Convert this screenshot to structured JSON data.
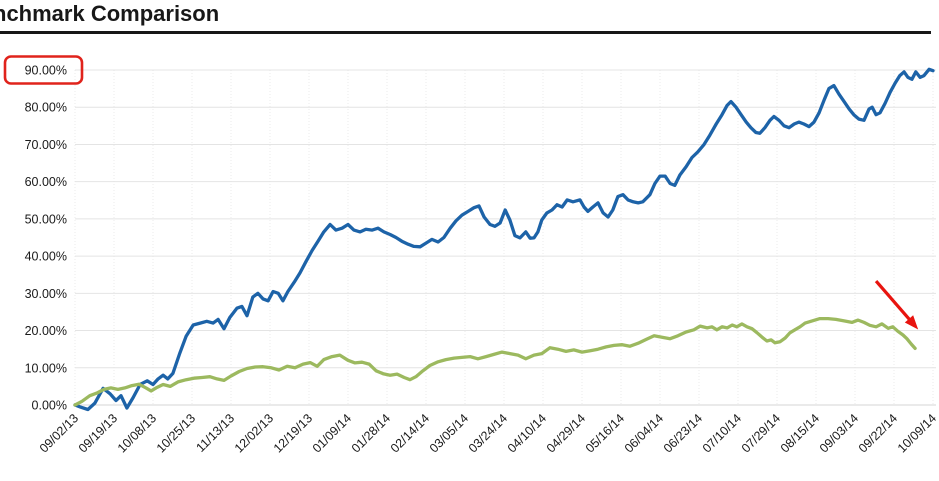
{
  "page": {
    "title": "nchmark Comparison"
  },
  "chart_data": {
    "type": "line",
    "title": "nchmark Comparison",
    "xlabel": "",
    "ylabel": "",
    "ylim": [
      0,
      90
    ],
    "y_tick_labels": [
      "90.00%",
      "80.00%",
      "70.00%",
      "60.00%",
      "50.00%",
      "40.00%",
      "30.00%",
      "20.00%",
      "10.00%",
      "0.00%"
    ],
    "x_tick_labels": [
      "09/02/13",
      "09/19/13",
      "10/08/13",
      "10/25/13",
      "11/13/13",
      "12/02/13",
      "12/19/13",
      "01/09/14",
      "01/28/14",
      "02/14/14",
      "03/05/14",
      "03/24/14",
      "04/10/14",
      "04/29/14",
      "05/16/14",
      "06/04/14",
      "06/23/14",
      "07/10/14",
      "07/29/14",
      "08/15/14",
      "09/03/14",
      "09/22/14",
      "10/09/14"
    ],
    "x_tick_rotation_deg": -45,
    "legend_position": "none",
    "grid": {
      "horizontal": true,
      "vertical_dotted": true,
      "color": "#e4e4e4"
    },
    "axis_label_color": "#1a1a1a",
    "series": [
      {
        "name": "blue-series",
        "color": "#1d63a8",
        "unit": "percent",
        "points": [
          [
            0,
            0
          ],
          [
            0.13,
            -0.5
          ],
          [
            0.33,
            -1.2
          ],
          [
            0.51,
            0.5
          ],
          [
            0.72,
            4.5
          ],
          [
            0.9,
            3
          ],
          [
            1.05,
            1.2
          ],
          [
            1.18,
            2.5
          ],
          [
            1.33,
            -0.8
          ],
          [
            1.49,
            2
          ],
          [
            1.67,
            5.5
          ],
          [
            1.85,
            6.5
          ],
          [
            2,
            5.5
          ],
          [
            2.13,
            7
          ],
          [
            2.26,
            8
          ],
          [
            2.38,
            7
          ],
          [
            2.51,
            8.5
          ],
          [
            2.69,
            14
          ],
          [
            2.85,
            18.5
          ],
          [
            3.03,
            21.5
          ],
          [
            3.21,
            22
          ],
          [
            3.38,
            22.5
          ],
          [
            3.54,
            22
          ],
          [
            3.67,
            23
          ],
          [
            3.82,
            20.5
          ],
          [
            3.97,
            23.5
          ],
          [
            4.15,
            26
          ],
          [
            4.28,
            26.5
          ],
          [
            4.41,
            24
          ],
          [
            4.56,
            29
          ],
          [
            4.69,
            30
          ],
          [
            4.82,
            28.5
          ],
          [
            4.95,
            28
          ],
          [
            5.08,
            30.5
          ],
          [
            5.21,
            30
          ],
          [
            5.33,
            28
          ],
          [
            5.46,
            30.5
          ],
          [
            5.62,
            33
          ],
          [
            5.77,
            35.5
          ],
          [
            5.92,
            38.5
          ],
          [
            6.08,
            41.5
          ],
          [
            6.23,
            44
          ],
          [
            6.38,
            46.5
          ],
          [
            6.54,
            48.5
          ],
          [
            6.69,
            47
          ],
          [
            6.85,
            47.5
          ],
          [
            7,
            48.5
          ],
          [
            7.15,
            47
          ],
          [
            7.31,
            46.5
          ],
          [
            7.46,
            47.2
          ],
          [
            7.62,
            47
          ],
          [
            7.77,
            47.5
          ],
          [
            7.92,
            46.5
          ],
          [
            8.08,
            45.8
          ],
          [
            8.23,
            45
          ],
          [
            8.38,
            44
          ],
          [
            8.54,
            43.2
          ],
          [
            8.69,
            42.6
          ],
          [
            8.85,
            42.5
          ],
          [
            9,
            43.5
          ],
          [
            9.15,
            44.5
          ],
          [
            9.31,
            43.8
          ],
          [
            9.46,
            45
          ],
          [
            9.62,
            47.5
          ],
          [
            9.77,
            49.5
          ],
          [
            9.92,
            51
          ],
          [
            10.08,
            52
          ],
          [
            10.23,
            53
          ],
          [
            10.36,
            53.5
          ],
          [
            10.49,
            50.5
          ],
          [
            10.64,
            48.5
          ],
          [
            10.77,
            48
          ],
          [
            10.9,
            48.9
          ],
          [
            11.03,
            52.4
          ],
          [
            11.15,
            49.7
          ],
          [
            11.28,
            45.5
          ],
          [
            11.41,
            44.9
          ],
          [
            11.56,
            46.5
          ],
          [
            11.67,
            44.8
          ],
          [
            11.77,
            44.9
          ],
          [
            11.87,
            46.5
          ],
          [
            11.97,
            49.7
          ],
          [
            12.1,
            51.6
          ],
          [
            12.23,
            52.4
          ],
          [
            12.36,
            53.8
          ],
          [
            12.49,
            53.2
          ],
          [
            12.62,
            55.1
          ],
          [
            12.77,
            54.6
          ],
          [
            12.95,
            55.1
          ],
          [
            13.05,
            53.2
          ],
          [
            13.15,
            52
          ],
          [
            13.28,
            53.2
          ],
          [
            13.41,
            54.3
          ],
          [
            13.54,
            51.6
          ],
          [
            13.67,
            50.5
          ],
          [
            13.79,
            52.4
          ],
          [
            13.92,
            56
          ],
          [
            14.05,
            56.5
          ],
          [
            14.18,
            55.1
          ],
          [
            14.31,
            54.6
          ],
          [
            14.44,
            54.3
          ],
          [
            14.56,
            54.6
          ],
          [
            14.74,
            56.5
          ],
          [
            14.87,
            59.5
          ],
          [
            15,
            61.5
          ],
          [
            15.13,
            61.5
          ],
          [
            15.26,
            59.5
          ],
          [
            15.38,
            59
          ],
          [
            15.51,
            61.8
          ],
          [
            15.67,
            64
          ],
          [
            15.82,
            66.5
          ],
          [
            15.97,
            68
          ],
          [
            16.13,
            70
          ],
          [
            16.28,
            72.5
          ],
          [
            16.44,
            75.5
          ],
          [
            16.59,
            78
          ],
          [
            16.72,
            80.5
          ],
          [
            16.82,
            81.5
          ],
          [
            16.95,
            80
          ],
          [
            17.08,
            78
          ],
          [
            17.21,
            76
          ],
          [
            17.33,
            74.5
          ],
          [
            17.46,
            73.2
          ],
          [
            17.56,
            73
          ],
          [
            17.69,
            74.5
          ],
          [
            17.82,
            76.5
          ],
          [
            17.92,
            77.5
          ],
          [
            18.05,
            76.5
          ],
          [
            18.18,
            75
          ],
          [
            18.31,
            74.5
          ],
          [
            18.44,
            75.5
          ],
          [
            18.56,
            76
          ],
          [
            18.69,
            75.5
          ],
          [
            18.82,
            74.8
          ],
          [
            18.95,
            76
          ],
          [
            19.08,
            78.5
          ],
          [
            19.21,
            82
          ],
          [
            19.33,
            85
          ],
          [
            19.46,
            85.8
          ],
          [
            19.59,
            83.5
          ],
          [
            19.72,
            81.5
          ],
          [
            19.85,
            79.5
          ],
          [
            19.97,
            78
          ],
          [
            20.1,
            76.8
          ],
          [
            20.23,
            76.5
          ],
          [
            20.36,
            79.5
          ],
          [
            20.44,
            80
          ],
          [
            20.54,
            78
          ],
          [
            20.64,
            78.5
          ],
          [
            20.77,
            81
          ],
          [
            20.9,
            84
          ],
          [
            21.03,
            86.5
          ],
          [
            21.15,
            88.5
          ],
          [
            21.26,
            89.5
          ],
          [
            21.36,
            88
          ],
          [
            21.46,
            87.5
          ],
          [
            21.56,
            89.5
          ],
          [
            21.67,
            88
          ],
          [
            21.77,
            88.5
          ],
          [
            21.9,
            90.2
          ],
          [
            22,
            89.8
          ]
        ]
      },
      {
        "name": "green-series",
        "color": "#9cb95f",
        "unit": "percent",
        "points": [
          [
            0,
            0
          ],
          [
            0.18,
            1
          ],
          [
            0.38,
            2.5
          ],
          [
            0.56,
            3.2
          ],
          [
            0.74,
            4.2
          ],
          [
            0.92,
            4.6
          ],
          [
            1.1,
            4.2
          ],
          [
            1.28,
            4.6
          ],
          [
            1.46,
            5.2
          ],
          [
            1.64,
            5.6
          ],
          [
            1.82,
            4.6
          ],
          [
            1.95,
            3.8
          ],
          [
            2.08,
            4.6
          ],
          [
            2.26,
            5.5
          ],
          [
            2.44,
            5
          ],
          [
            2.64,
            6.2
          ],
          [
            2.85,
            6.8
          ],
          [
            3.05,
            7.2
          ],
          [
            3.26,
            7.4
          ],
          [
            3.46,
            7.6
          ],
          [
            3.64,
            7
          ],
          [
            3.82,
            6.6
          ],
          [
            4,
            7.8
          ],
          [
            4.21,
            9
          ],
          [
            4.41,
            9.8
          ],
          [
            4.62,
            10.2
          ],
          [
            4.82,
            10.3
          ],
          [
            5.03,
            10
          ],
          [
            5.23,
            9.4
          ],
          [
            5.44,
            10.4
          ],
          [
            5.64,
            10
          ],
          [
            5.85,
            11
          ],
          [
            6.03,
            11.4
          ],
          [
            6.21,
            10.4
          ],
          [
            6.38,
            12.2
          ],
          [
            6.59,
            13
          ],
          [
            6.79,
            13.4
          ],
          [
            7,
            12
          ],
          [
            7.18,
            11.3
          ],
          [
            7.36,
            11.5
          ],
          [
            7.54,
            11
          ],
          [
            7.72,
            9.2
          ],
          [
            7.9,
            8.4
          ],
          [
            8.08,
            8
          ],
          [
            8.26,
            8.3
          ],
          [
            8.44,
            7.4
          ],
          [
            8.59,
            6.8
          ],
          [
            8.74,
            7.6
          ],
          [
            8.92,
            9.2
          ],
          [
            9.1,
            10.6
          ],
          [
            9.31,
            11.6
          ],
          [
            9.51,
            12.2
          ],
          [
            9.72,
            12.6
          ],
          [
            9.92,
            12.8
          ],
          [
            10.13,
            13
          ],
          [
            10.33,
            12.4
          ],
          [
            10.54,
            13
          ],
          [
            10.74,
            13.6
          ],
          [
            10.95,
            14.2
          ],
          [
            11.15,
            13.8
          ],
          [
            11.36,
            13.4
          ],
          [
            11.56,
            12.4
          ],
          [
            11.77,
            13.4
          ],
          [
            11.97,
            13.8
          ],
          [
            12.18,
            15.4
          ],
          [
            12.38,
            15
          ],
          [
            12.59,
            14.4
          ],
          [
            12.79,
            14.8
          ],
          [
            13,
            14.2
          ],
          [
            13.21,
            14.6
          ],
          [
            13.41,
            15
          ],
          [
            13.62,
            15.6
          ],
          [
            13.82,
            16
          ],
          [
            14.03,
            16.2
          ],
          [
            14.23,
            15.8
          ],
          [
            14.44,
            16.6
          ],
          [
            14.64,
            17.6
          ],
          [
            14.85,
            18.6
          ],
          [
            15.05,
            18.2
          ],
          [
            15.26,
            17.8
          ],
          [
            15.46,
            18.6
          ],
          [
            15.67,
            19.6
          ],
          [
            15.87,
            20.2
          ],
          [
            16.03,
            21.2
          ],
          [
            16.21,
            20.7
          ],
          [
            16.33,
            21
          ],
          [
            16.46,
            20.2
          ],
          [
            16.59,
            21
          ],
          [
            16.72,
            20.7
          ],
          [
            16.85,
            21.5
          ],
          [
            16.97,
            21
          ],
          [
            17.1,
            21.8
          ],
          [
            17.23,
            21
          ],
          [
            17.36,
            20.5
          ],
          [
            17.49,
            19.4
          ],
          [
            17.62,
            18.2
          ],
          [
            17.74,
            17.2
          ],
          [
            17.85,
            17.5
          ],
          [
            17.95,
            16.7
          ],
          [
            18.08,
            17
          ],
          [
            18.21,
            18
          ],
          [
            18.33,
            19.4
          ],
          [
            18.46,
            20.2
          ],
          [
            18.59,
            21
          ],
          [
            18.72,
            22
          ],
          [
            18.9,
            22.6
          ],
          [
            19.1,
            23.2
          ],
          [
            19.31,
            23.2
          ],
          [
            19.51,
            23
          ],
          [
            19.72,
            22.6
          ],
          [
            19.92,
            22.2
          ],
          [
            20.08,
            22.8
          ],
          [
            20.23,
            22.2
          ],
          [
            20.38,
            21.4
          ],
          [
            20.54,
            21
          ],
          [
            20.69,
            21.8
          ],
          [
            20.85,
            20.6
          ],
          [
            20.97,
            21
          ],
          [
            21.1,
            19.8
          ],
          [
            21.23,
            18.8
          ],
          [
            21.33,
            17.8
          ],
          [
            21.44,
            16.4
          ],
          [
            21.54,
            15.2
          ]
        ]
      }
    ],
    "annotations": {
      "highlighted_y_tick": "90.00%",
      "highlight_box_color": "#e0231c",
      "arrow": {
        "color": "#e8140f",
        "from": [
          20.54,
          33.3
        ],
        "to": [
          21.62,
          20.3
        ],
        "points_at": "drop at end of green-series"
      }
    }
  }
}
